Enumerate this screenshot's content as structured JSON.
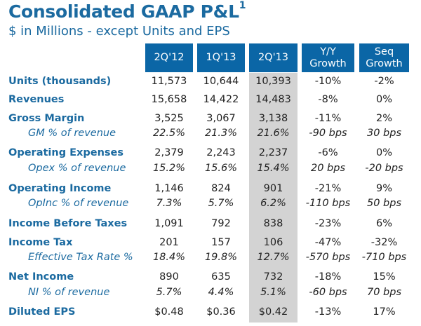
{
  "title": "Consolidated GAAP P&L",
  "title_footnote": "1",
  "subtitle": "$ in Millions - except Units and EPS",
  "columns": [
    "2Q'12",
    "1Q'13",
    "2Q'13",
    "Y/Y Growth",
    "Seq Growth"
  ],
  "highlight_column": "2Q'13",
  "colors": {
    "header_bg": "#0b66a6",
    "label": "#1b6aa0",
    "highlight": "#d3d3d3"
  },
  "rows": [
    {
      "label": "Units (thousands)",
      "sub": false,
      "values": [
        "11,573",
        "10,644",
        "10,393",
        "-10%",
        "-2%"
      ]
    },
    {
      "label": "Revenues",
      "sub": false,
      "values": [
        "15,658",
        "14,422",
        "14,483",
        "-8%",
        "0%"
      ]
    },
    {
      "label": "Gross Margin",
      "sub": false,
      "values": [
        "3,525",
        "3,067",
        "3,138",
        "-11%",
        "2%"
      ]
    },
    {
      "label": "GM % of revenue",
      "sub": true,
      "values": [
        "22.5%",
        "21.3%",
        "21.6%",
        "-90 bps",
        "30 bps"
      ]
    },
    {
      "label": "Operating Expenses",
      "sub": false,
      "values": [
        "2,379",
        "2,243",
        "2,237",
        "-6%",
        "0%"
      ]
    },
    {
      "label": "Opex % of revenue",
      "sub": true,
      "values": [
        "15.2%",
        "15.6%",
        "15.4%",
        "20 bps",
        "-20 bps"
      ]
    },
    {
      "label": "Operating Income",
      "sub": false,
      "values": [
        "1,146",
        "824",
        "901",
        "-21%",
        "9%"
      ]
    },
    {
      "label": "OpInc % of revenue",
      "sub": true,
      "values": [
        "7.3%",
        "5.7%",
        "6.2%",
        "-110 bps",
        "50 bps"
      ]
    },
    {
      "label": "Income Before Taxes",
      "sub": false,
      "values": [
        "1,091",
        "792",
        "838",
        "-23%",
        "6%"
      ]
    },
    {
      "label": "Income Tax",
      "sub": false,
      "values": [
        "201",
        "157",
        "106",
        "-47%",
        "-32%"
      ]
    },
    {
      "label": "Effective Tax Rate %",
      "sub": true,
      "values": [
        "18.4%",
        "19.8%",
        "12.7%",
        "-570 bps",
        "-710 bps"
      ]
    },
    {
      "label": "Net Income",
      "sub": false,
      "values": [
        "890",
        "635",
        "732",
        "-18%",
        "15%"
      ]
    },
    {
      "label": "NI % of revenue",
      "sub": true,
      "values": [
        "5.7%",
        "4.4%",
        "5.1%",
        "-60 bps",
        "70 bps"
      ]
    },
    {
      "label": "Diluted EPS",
      "sub": false,
      "values": [
        "$0.48",
        "$0.36",
        "$0.42",
        "-13%",
        "17%"
      ]
    }
  ]
}
